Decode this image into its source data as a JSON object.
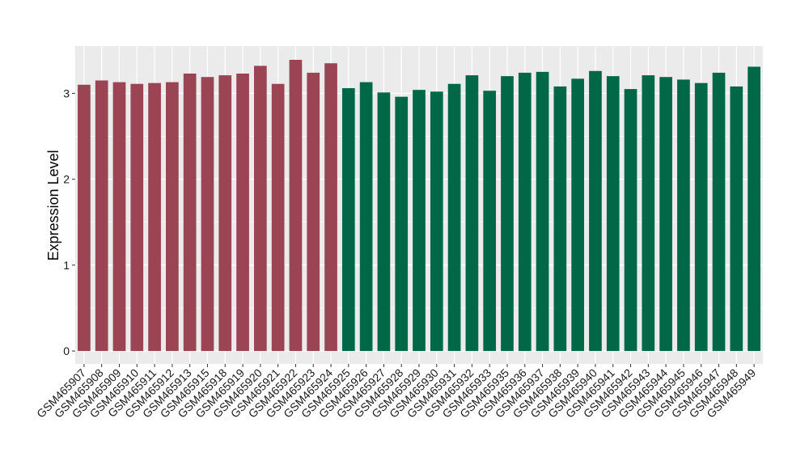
{
  "chart_data": {
    "type": "bar",
    "title": "",
    "xlabel": "",
    "ylabel": "Expression Level",
    "ylim": [
      -0.15,
      3.55
    ],
    "yticks": [
      0,
      1,
      2,
      3
    ],
    "grid": true,
    "legend": "none",
    "categories": [
      "GSM465907",
      "GSM465908",
      "GSM465909",
      "GSM465910",
      "GSM465911",
      "GSM465912",
      "GSM465913",
      "GSM465915",
      "GSM465918",
      "GSM465919",
      "GSM465920",
      "GSM465921",
      "GSM465922",
      "GSM465923",
      "GSM465924",
      "GSM465925",
      "GSM465926",
      "GSM465927",
      "GSM465928",
      "GSM465929",
      "GSM465930",
      "GSM465931",
      "GSM465932",
      "GSM465933",
      "GSM465935",
      "GSM465936",
      "GSM465937",
      "GSM465938",
      "GSM465939",
      "GSM465940",
      "GSM465941",
      "GSM465942",
      "GSM465943",
      "GSM465944",
      "GSM465945",
      "GSM465946",
      "GSM465947",
      "GSM465948",
      "GSM465949"
    ],
    "values": [
      3.1,
      3.15,
      3.13,
      3.11,
      3.12,
      3.13,
      3.23,
      3.19,
      3.21,
      3.23,
      3.32,
      3.11,
      3.39,
      3.24,
      3.35,
      3.06,
      3.13,
      3.01,
      2.96,
      3.04,
      3.02,
      3.11,
      3.21,
      3.03,
      3.2,
      3.24,
      3.25,
      3.08,
      3.17,
      3.26,
      3.2,
      3.05,
      3.21,
      3.19,
      3.16,
      3.12,
      3.24,
      3.08,
      3.31
    ],
    "group_sizes": [
      15,
      24
    ],
    "colors": [
      "#9b4453",
      "#006846"
    ],
    "panel_background": "#ebebeb",
    "grid_color": "#ffffff"
  }
}
